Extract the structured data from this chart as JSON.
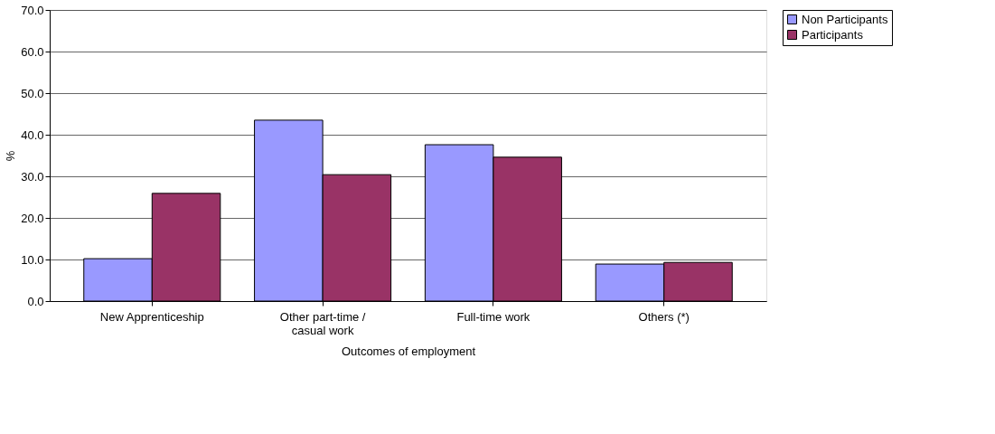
{
  "chart_data": {
    "type": "bar",
    "xlabel": "Outcomes of employment",
    "ylabel": "%",
    "categories": [
      "New Apprenticeship",
      "Other part-time / casual work",
      "Full-time work",
      "Others (*)"
    ],
    "series": [
      {
        "name": "Non Participants",
        "color": "#9999ff",
        "values": [
          10.2,
          43.5,
          37.6,
          8.9
        ]
      },
      {
        "name": "Participants",
        "color": "#993366",
        "values": [
          25.9,
          30.4,
          34.6,
          9.3
        ]
      }
    ],
    "ylim": [
      0,
      70
    ],
    "yticks": [
      {
        "value": 0,
        "label": "0.0"
      },
      {
        "value": 10,
        "label": "10.0"
      },
      {
        "value": 20,
        "label": "20.0"
      },
      {
        "value": 30,
        "label": "30.0"
      },
      {
        "value": 40,
        "label": "40.0"
      },
      {
        "value": 50,
        "label": "50.0"
      },
      {
        "value": 60,
        "label": "60.0"
      },
      {
        "value": 70,
        "label": "70.0"
      }
    ],
    "grid": "y",
    "legend": "right"
  }
}
